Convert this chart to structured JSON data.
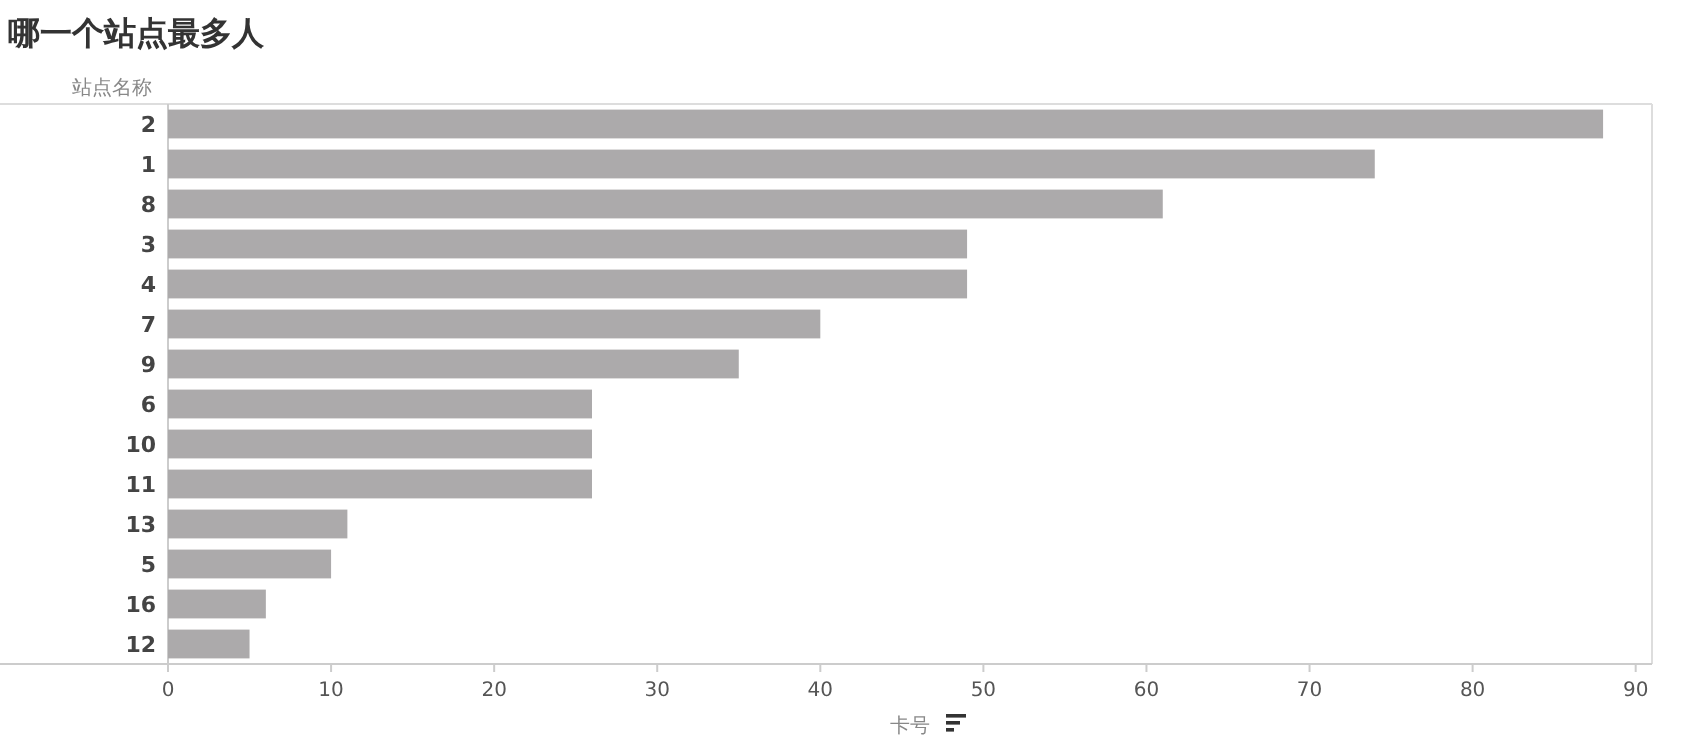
{
  "chart_data": {
    "type": "bar",
    "orientation": "horizontal",
    "title": "哪一个站点最多人",
    "ylabel": "站点名称",
    "xlabel": "卡号",
    "categories": [
      "2",
      "1",
      "8",
      "3",
      "4",
      "7",
      "9",
      "6",
      "10",
      "11",
      "13",
      "5",
      "16",
      "12"
    ],
    "values": [
      88,
      74,
      61,
      49,
      49,
      40,
      35,
      26,
      26,
      26,
      11,
      10,
      6,
      5
    ],
    "color": "#acaaab",
    "xlim": [
      0,
      91
    ],
    "xticks": [
      0,
      10,
      20,
      30,
      40,
      50,
      60,
      70,
      80,
      90
    ],
    "grid": false
  }
}
